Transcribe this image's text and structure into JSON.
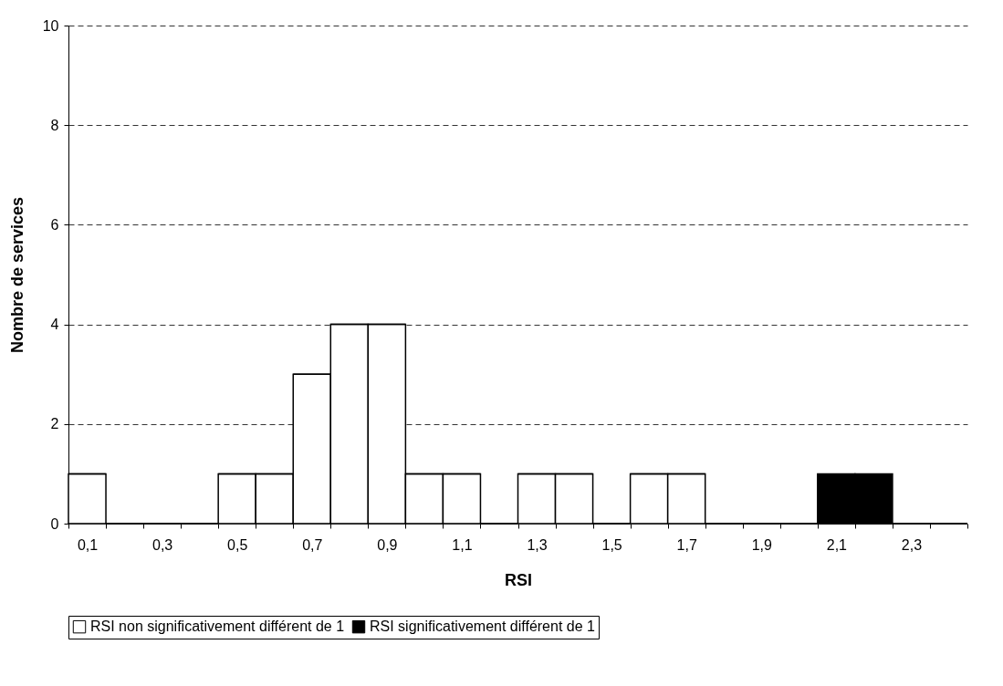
{
  "chart_data": {
    "type": "bar",
    "stacked": true,
    "xlabel": "RSI",
    "ylabel": "Nombre de services",
    "categories": [
      "0,1",
      null,
      "0,3",
      null,
      "0,5",
      null,
      "0,7",
      null,
      "0,9",
      null,
      "1,1",
      null,
      "1,3",
      null,
      "1,5",
      null,
      "1,7",
      null,
      "1,9",
      null,
      "2,1",
      null,
      "2,3",
      null
    ],
    "series": [
      {
        "name": "RSI non significativement différent de 1",
        "color": "#ffffff",
        "values": [
          1,
          0,
          0,
          0,
          1,
          1,
          3,
          4,
          4,
          1,
          1,
          0,
          1,
          1,
          0,
          1,
          1,
          0,
          0,
          0,
          0,
          0,
          0,
          0
        ]
      },
      {
        "name": "RSI significativement différent de 1",
        "color": "#000000",
        "values": [
          0,
          0,
          0,
          0,
          0,
          0,
          0,
          0,
          0,
          0,
          0,
          0,
          0,
          0,
          0,
          0,
          0,
          0,
          0,
          0,
          1,
          1,
          0,
          0
        ]
      }
    ],
    "ylim": [
      0,
      10
    ],
    "yticks": [
      0,
      2,
      4,
      6,
      8,
      10
    ],
    "grid": "y",
    "legend": "bottom"
  }
}
